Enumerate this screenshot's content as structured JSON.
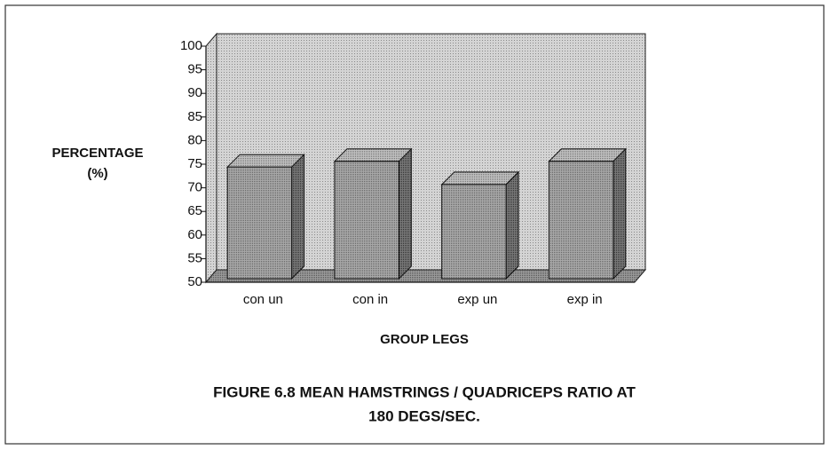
{
  "chart_data": {
    "type": "bar3d",
    "title": [
      "FIGURE 6.8 MEAN HAMSTRINGS / QUADRICEPS RATIO AT",
      "180 DEGS/SEC."
    ],
    "y_label": [
      "PERCENTAGE",
      "(%)"
    ],
    "x_label": "GROUP LEGS",
    "categories": [
      "con un",
      "con in",
      "exp un",
      "exp in"
    ],
    "values": [
      74.4,
      75.6,
      70.7,
      75.6
    ],
    "color": "#9a9a9a",
    "ylim": [
      50,
      100
    ],
    "yticks": [
      50,
      55,
      60,
      65,
      70,
      75,
      80,
      85,
      90,
      95,
      100
    ]
  }
}
